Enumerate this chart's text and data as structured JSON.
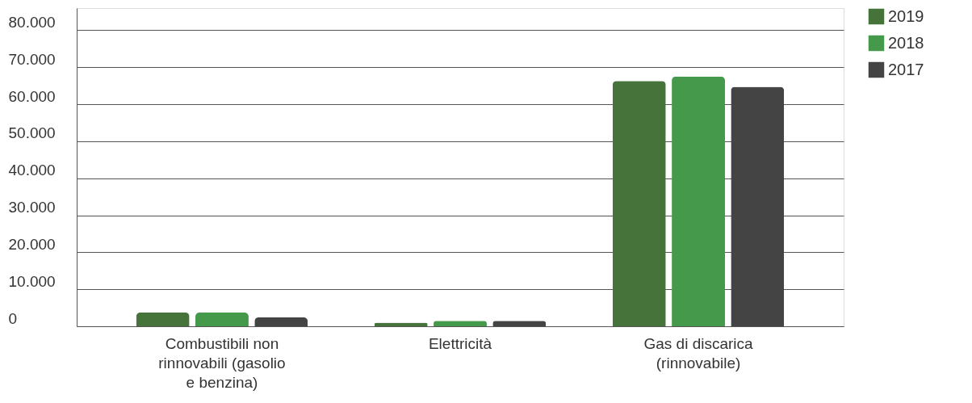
{
  "chart_data": {
    "type": "bar",
    "categories": [
      "Combustibili non rinnovabili (gasolio e benzina)",
      "Elettricità",
      "Gas di discarica (rinnovabile)"
    ],
    "series": [
      {
        "name": "2019",
        "color": "#46733a",
        "values": [
          3700,
          1000,
          66300
        ]
      },
      {
        "name": "2018",
        "color": "#45994a",
        "values": [
          3700,
          1500,
          67500
        ]
      },
      {
        "name": "2017",
        "color": "#444444",
        "values": [
          2400,
          1500,
          64700
        ]
      }
    ],
    "ylim": [
      0,
      86000
    ],
    "yticks": [
      {
        "value": 0,
        "label": "0"
      },
      {
        "value": 10000,
        "label": "10.000"
      },
      {
        "value": 20000,
        "label": "20.000"
      },
      {
        "value": 30000,
        "label": "30.000"
      },
      {
        "value": 40000,
        "label": "40.000"
      },
      {
        "value": 50000,
        "label": "50.000"
      },
      {
        "value": 60000,
        "label": "60.000"
      },
      {
        "value": 70000,
        "label": "70.000"
      },
      {
        "value": 80000,
        "label": "80.000"
      }
    ],
    "grid": "y",
    "legend": "right"
  }
}
